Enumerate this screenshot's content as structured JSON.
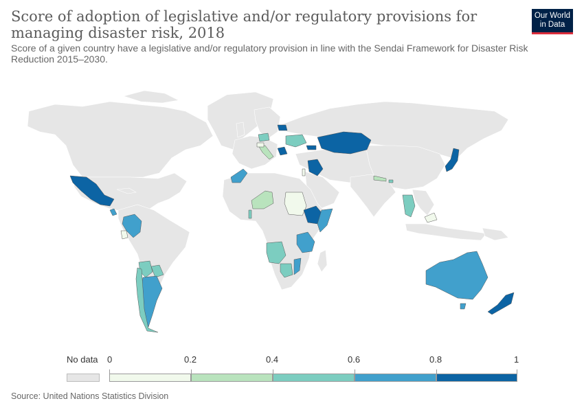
{
  "header": {
    "title": "Score of adoption of legislative and/or regulatory provisions for managing disaster risk, 2018",
    "subtitle": "Score of a given country have a legislative and/or regulatory provision in line with the Sendai Framework for Disaster Risk Reduction 2015–2030.",
    "logo_line1": "Our World",
    "logo_line2": "in Data"
  },
  "legend": {
    "no_data_label": "No data",
    "no_data_color": "#e6e6e6",
    "bins": [
      {
        "from": "0",
        "to": "0.2",
        "color": "#f1f9ec"
      },
      {
        "from": "0.2",
        "to": "0.4",
        "color": "#b9e3bd"
      },
      {
        "from": "0.4",
        "to": "0.6",
        "color": "#7ccdc0"
      },
      {
        "from": "0.6",
        "to": "0.8",
        "color": "#41a0cc"
      },
      {
        "from": "0.8",
        "to": "1",
        "color": "#0c64a4"
      }
    ],
    "tick_labels": [
      "0",
      "0.2",
      "0.4",
      "0.6",
      "0.8",
      "1"
    ]
  },
  "map_colors": {
    "no_data": "#e6e6e6",
    "border": "#ffffff"
  },
  "footer": {
    "source": "Source: United Nations Statistics Division"
  }
}
